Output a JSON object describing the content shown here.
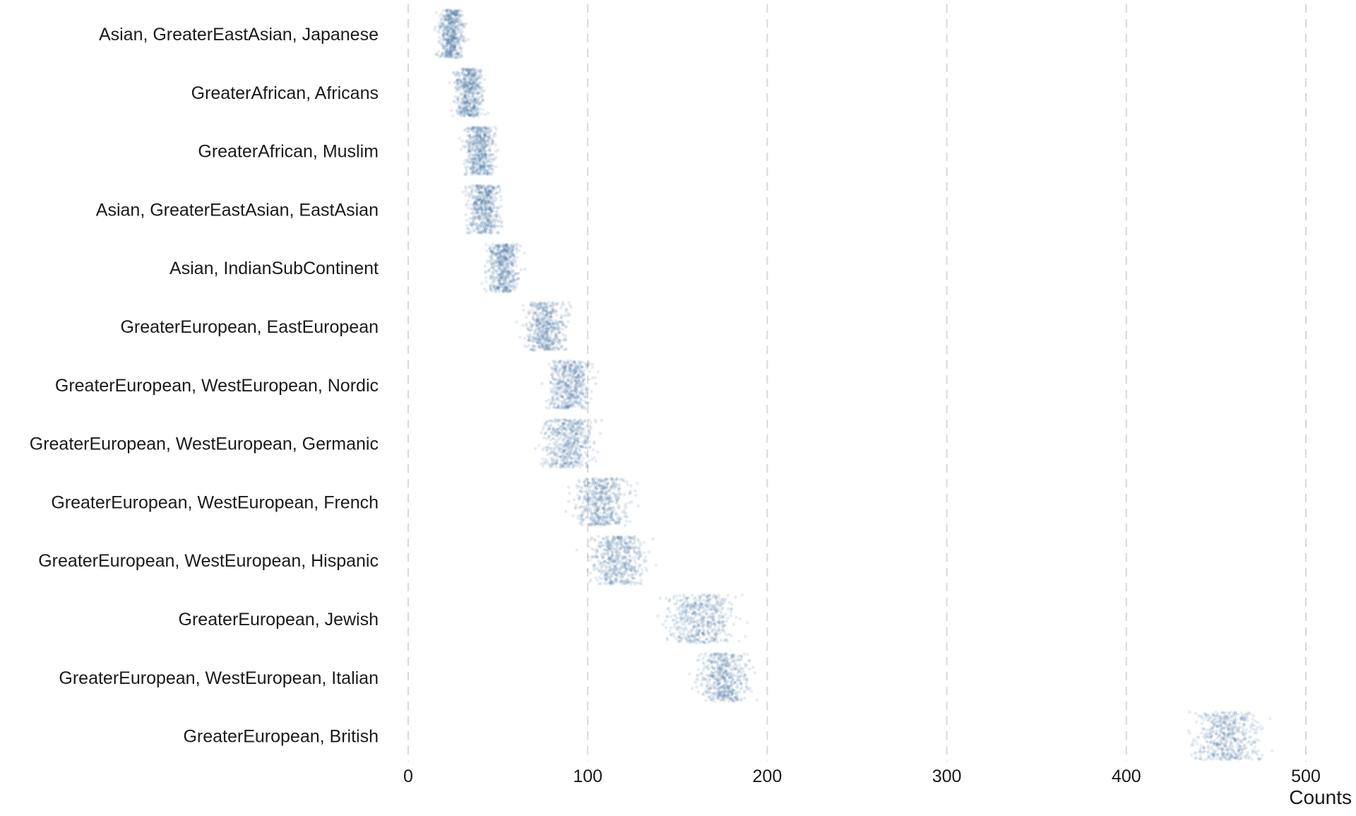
{
  "chart_data": {
    "type": "scatter",
    "subtype": "jitter-strip",
    "title": "",
    "xlabel": "Counts",
    "ylabel": "",
    "xlim": [
      0,
      500
    ],
    "xticks": [
      0,
      100,
      200,
      300,
      400,
      500
    ],
    "grid": "vertical-dashed",
    "point_color": "#3d6f99",
    "categories": [
      "Asian, GreaterEastAsian, Japanese",
      "GreaterAfrican, Africans",
      "GreaterAfrican, Muslim",
      "Asian, GreaterEastAsian, EastAsian",
      "Asian, IndianSubContinent",
      "GreaterEuropean, EastEuropean",
      "GreaterEuropean, WestEuropean, Nordic",
      "GreaterEuropean, WestEuropean, Germanic",
      "GreaterEuropean, WestEuropean, French",
      "GreaterEuropean, WestEuropean, Hispanic",
      "GreaterEuropean, Jewish",
      "GreaterEuropean, WestEuropean, Italian",
      "GreaterEuropean, British"
    ],
    "series": [
      {
        "category": "Asian, GreaterEastAsian, Japanese",
        "center": 24,
        "min": 14,
        "max": 35
      },
      {
        "category": "GreaterAfrican, Africans",
        "center": 34,
        "min": 22,
        "max": 47
      },
      {
        "category": "GreaterAfrican, Muslim",
        "center": 40,
        "min": 26,
        "max": 54
      },
      {
        "category": "Asian, GreaterEastAsian, EastAsian",
        "center": 42,
        "min": 28,
        "max": 57
      },
      {
        "category": "Asian, IndianSubContinent",
        "center": 53,
        "min": 38,
        "max": 67
      },
      {
        "category": "GreaterEuropean, EastEuropean",
        "center": 77,
        "min": 60,
        "max": 96
      },
      {
        "category": "GreaterEuropean, WestEuropean, Nordic",
        "center": 90,
        "min": 72,
        "max": 110
      },
      {
        "category": "GreaterEuropean, WestEuropean, Germanic",
        "center": 89,
        "min": 67,
        "max": 110
      },
      {
        "category": "GreaterEuropean, WestEuropean, French",
        "center": 108,
        "min": 82,
        "max": 130
      },
      {
        "category": "GreaterEuropean, WestEuropean, Hispanic",
        "center": 117,
        "min": 90,
        "max": 138
      },
      {
        "category": "GreaterEuropean, Jewish",
        "center": 163,
        "min": 130,
        "max": 190
      },
      {
        "category": "GreaterEuropean, WestEuropean, Italian",
        "center": 176,
        "min": 155,
        "max": 197
      },
      {
        "category": "GreaterEuropean, British",
        "center": 457,
        "min": 425,
        "max": 485
      }
    ]
  }
}
